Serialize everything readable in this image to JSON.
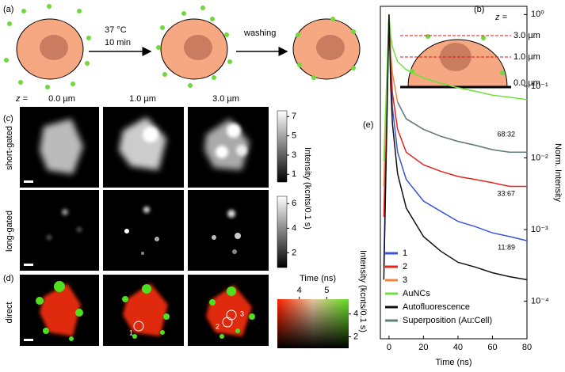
{
  "panel_a": {
    "label": "(a)",
    "condition": [
      "37 °C",
      "10 min"
    ],
    "step2": "washing"
  },
  "panel_b": {
    "label": "(b)",
    "z": "z =",
    "levels": [
      "3.0 µm",
      "1.0 µm",
      "0.0 µm"
    ]
  },
  "panel_c": {
    "label": "(c)",
    "z": "z =",
    "depths": [
      "0.0 µm",
      "1.0 µm",
      "3.0 µm"
    ],
    "rows": [
      "short-gated",
      "long-gated"
    ],
    "colorbar_label": "Intensity (kcnts/0.1 s)",
    "short_lim": [
      0.2,
      7.6
    ],
    "short_ticks": [
      1,
      3,
      5,
      7
    ],
    "long_lim": [
      0.8,
      6.6
    ],
    "long_ticks": [
      2,
      4,
      6
    ]
  },
  "panel_d": {
    "label": "(d)",
    "row": "direct",
    "markers": [
      "1",
      "2",
      "3"
    ],
    "time_label": "Time (ns)",
    "time_lim": [
      3.2,
      5.8
    ],
    "time_ticks": [
      4,
      5
    ],
    "intensity_label": "Intensity (kcnts/0.1 s)",
    "intensity_lim": [
      1,
      5.3
    ],
    "intensity_ticks": [
      2,
      4
    ]
  },
  "chart_data": {
    "type": "line",
    "label": "(e)",
    "xlabel": "Time (ns)",
    "ylabel": "Norm. Intensity",
    "log_y": true,
    "legend": "lower left",
    "x": [
      -3,
      0,
      1,
      2,
      5,
      10,
      20,
      30,
      40,
      50,
      60,
      70,
      80
    ],
    "xlim": [
      -5,
      80
    ],
    "xticks": [
      0,
      20,
      40,
      60,
      80
    ],
    "ylim": [
      3e-05,
      1.3
    ],
    "yticks": [
      {
        "value": 0.0001,
        "label": "10⁻⁴"
      },
      {
        "value": 0.001,
        "label": "10⁻³"
      },
      {
        "value": 0.01,
        "label": "10⁻²"
      },
      {
        "value": 0.1,
        "label": "10⁻¹"
      },
      {
        "value": 1,
        "label": "10⁰"
      }
    ],
    "series": [
      {
        "name": "1",
        "color": "#3a55d8",
        "values": [
          0.0003,
          1,
          0.15,
          0.05,
          0.012,
          0.005,
          0.0025,
          0.0018,
          0.0013,
          0.0011,
          0.0009,
          0.0008,
          0.0007
        ]
      },
      {
        "name": "2",
        "color": "#e0251f",
        "values": [
          0.0015,
          1,
          0.2,
          0.08,
          0.025,
          0.012,
          0.008,
          0.0065,
          0.0055,
          0.005,
          0.0045,
          0.004,
          0.004
        ]
      },
      {
        "name": "3",
        "color": "#f0843a",
        "values": [
          0.004,
          1,
          0.3,
          0.15,
          0.06,
          0.035,
          0.025,
          0.02,
          0.017,
          0.015,
          0.013,
          0.012,
          0.012
        ]
      },
      {
        "name": "AuNCs",
        "color": "#6fe03a",
        "values": [
          0.009,
          1,
          0.5,
          0.35,
          0.22,
          0.17,
          0.13,
          0.11,
          0.095,
          0.085,
          0.075,
          0.07,
          0.065
        ]
      },
      {
        "name": "Autofluorescence",
        "color": "#111111",
        "values": [
          0.0002,
          1,
          0.1,
          0.03,
          0.006,
          0.002,
          0.0008,
          0.0005,
          0.00035,
          0.0003,
          0.00025,
          0.00022,
          0.0002
        ]
      },
      {
        "name": "Superposition (Au:Cell)",
        "color": "#5f7f7f",
        "values": [
          null,
          null,
          null,
          null,
          0.06,
          0.035,
          0.025,
          0.02,
          0.017,
          0.015,
          0.013,
          0.012,
          0.012
        ]
      }
    ],
    "annotations": [
      "68:32",
      "33:67",
      "11:89"
    ]
  }
}
